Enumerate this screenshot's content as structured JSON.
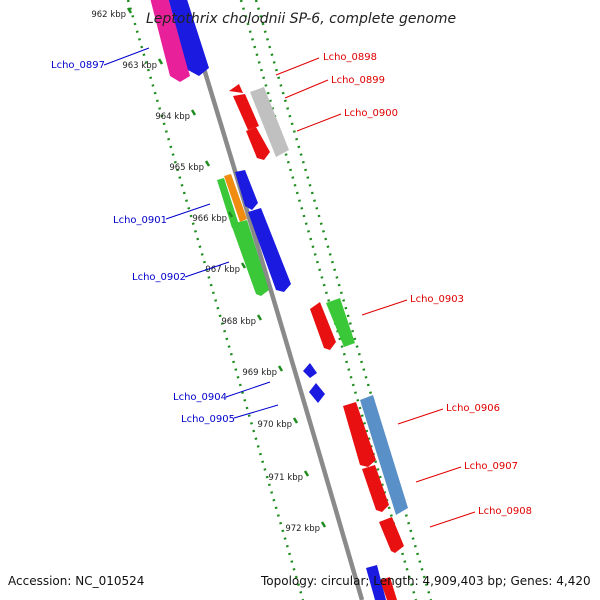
{
  "title": "Leptothrix cholodnii SP-6, complete genome",
  "footer": {
    "accession": "Accession: NC_010524",
    "topology": "Topology: circular; Length: 4,909,403 bp; Genes: 4,420"
  },
  "scale": {
    "ticks": [
      "962 kbp",
      "963 kbp",
      "964 kbp",
      "965 kbp",
      "966 kbp",
      "967 kbp",
      "968 kbp",
      "969 kbp",
      "970 kbp",
      "971 kbp",
      "972 kbp"
    ]
  },
  "genes_left": [
    {
      "name": "Lcho_0897"
    },
    {
      "name": "Lcho_0901"
    },
    {
      "name": "Lcho_0902"
    },
    {
      "name": "Lcho_0904"
    },
    {
      "name": "Lcho_0905"
    }
  ],
  "genes_right": [
    {
      "name": "Lcho_0898"
    },
    {
      "name": "Lcho_0899"
    },
    {
      "name": "Lcho_0900"
    },
    {
      "name": "Lcho_0903"
    },
    {
      "name": "Lcho_0906"
    },
    {
      "name": "Lcho_0907"
    },
    {
      "name": "Lcho_0908"
    }
  ],
  "colors": {
    "backbone": "#8a8a8a",
    "track_dots": "#1f8c1f",
    "label_left": "#0000cc",
    "label_right": "#e00000"
  }
}
